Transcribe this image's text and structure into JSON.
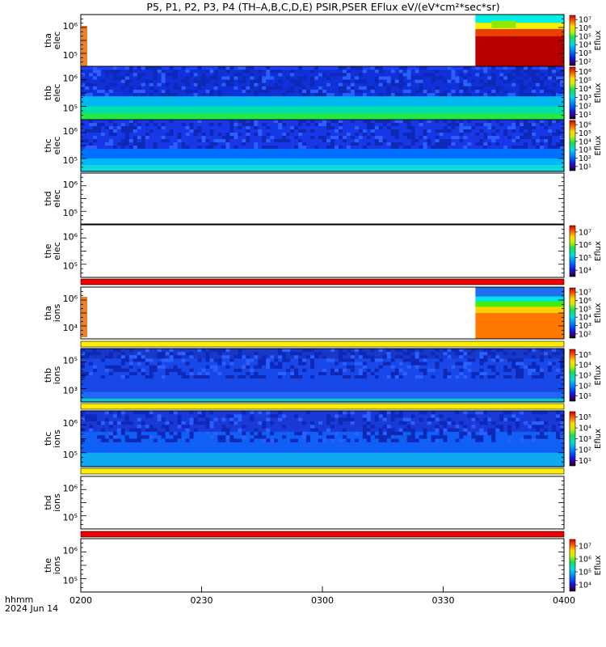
{
  "title": "P5, P1, P2, P3, P4 (TH–A,B,C,D,E) PSIR,PSER EFlux eV/(eV*cm²*sec*sr)",
  "footer": {
    "format": "hhmm",
    "date": "2024 Jun 14"
  },
  "chart_data": {
    "type": "heatmap",
    "x_ticks": [
      "0200",
      "0230",
      "0300",
      "0330",
      "0400"
    ],
    "x_range": [
      "02:00",
      "04:00"
    ],
    "colorbar_label": "Eflux",
    "panels": [
      {
        "id": "tha-elec",
        "label": [
          "tha",
          "elec"
        ],
        "y_ticks": [
          "10⁵",
          "10⁶"
        ],
        "data": "partial",
        "data_start": "03:38",
        "ylog": true,
        "cmap": "tha_elec",
        "colorbar": [
          "10²",
          "10³",
          "10⁴",
          "10⁵",
          "10⁶",
          "10⁷"
        ]
      },
      {
        "id": "thb-elec",
        "label": [
          "thb",
          "elec"
        ],
        "y_ticks": [
          "10⁵",
          "10⁶"
        ],
        "data": "full",
        "ylog": true,
        "cmap": "thb_elec",
        "colorbar": [
          "10¹",
          "10²",
          "10³",
          "10⁴",
          "10⁵",
          "10⁶"
        ]
      },
      {
        "id": "thc-elec",
        "label": [
          "thc",
          "elec"
        ],
        "y_ticks": [
          "10⁵",
          "10⁶"
        ],
        "data": "full",
        "ylog": true,
        "cmap": "thc_elec",
        "colorbar": [
          "10¹",
          "10²",
          "10³",
          "10⁴",
          "10⁵",
          "10⁶"
        ]
      },
      {
        "id": "thd-elec",
        "label": [
          "thd",
          "elec"
        ],
        "y_ticks": [
          "10⁵",
          "10⁶"
        ],
        "data": "none",
        "ylog": true
      },
      {
        "id": "the-elec",
        "label": [
          "the",
          "elec"
        ],
        "y_ticks": [
          "10⁵",
          "10⁶"
        ],
        "data": "none",
        "ylog": true,
        "colorbar": [
          "10⁴",
          "10⁵",
          "10⁶",
          "10⁷"
        ],
        "status_bar": "red"
      },
      {
        "id": "tha-ions",
        "label": [
          "tha",
          "ions"
        ],
        "y_ticks": [
          "10⁴",
          "10⁶"
        ],
        "data": "partial",
        "data_start": "03:38",
        "ylog": true,
        "cmap": "tha_ions",
        "colorbar": [
          "10²",
          "10³",
          "10⁴",
          "10⁵",
          "10⁶",
          "10⁷"
        ],
        "status_bar": "yellow"
      },
      {
        "id": "thb-ions",
        "label": [
          "thb",
          "ions"
        ],
        "y_ticks": [
          "10³",
          "10⁵"
        ],
        "data": "full",
        "ylog": true,
        "cmap": "thb_ions",
        "colorbar": [
          "10¹",
          "10²",
          "10³",
          "10⁴",
          "10⁵"
        ],
        "status_bar": "yellow"
      },
      {
        "id": "thc-ions",
        "label": [
          "thc",
          "ions"
        ],
        "y_ticks": [
          "10⁵",
          "10⁶"
        ],
        "data": "full",
        "ylog": true,
        "cmap": "thc_ions",
        "colorbar": [
          "10¹",
          "10²",
          "10³",
          "10⁴",
          "10⁵"
        ],
        "status_bar": "yellow"
      },
      {
        "id": "thd-ions",
        "label": [
          "thd",
          "ions"
        ],
        "y_ticks": [
          "10⁵",
          "10⁶"
        ],
        "data": "none",
        "ylog": true,
        "status_bar": "red"
      },
      {
        "id": "the-ions",
        "label": [
          "the",
          "ions"
        ],
        "y_ticks": [
          "10⁵",
          "10⁶"
        ],
        "data": "none",
        "ylog": true,
        "colorbar": [
          "10⁴",
          "10⁵",
          "10⁶",
          "10⁷"
        ]
      }
    ],
    "colors": {
      "status_red": "#ee0000",
      "status_yellow": "#ffee00"
    }
  }
}
